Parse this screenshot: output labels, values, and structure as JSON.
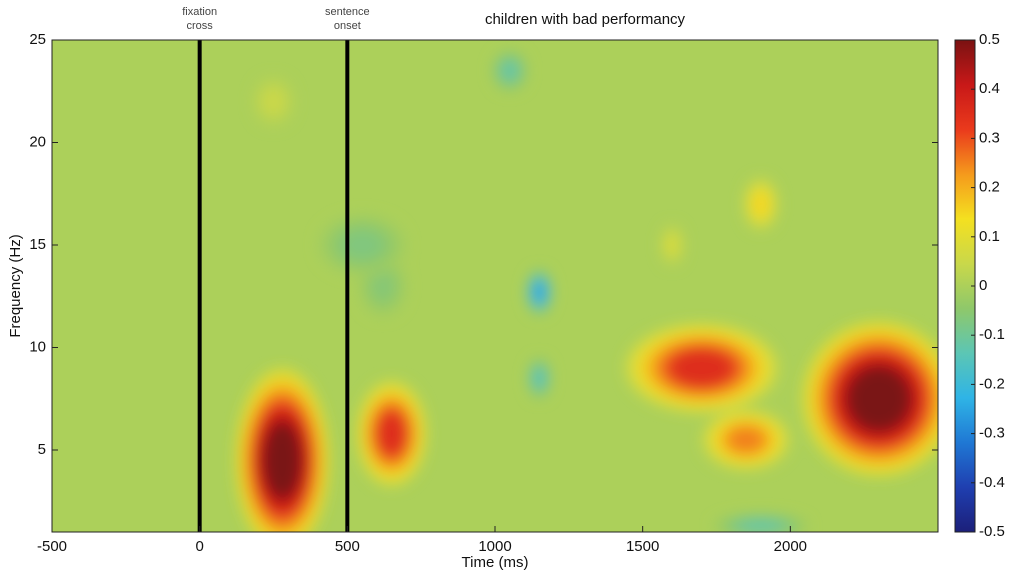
{
  "chart_data": {
    "type": "heatmap",
    "title": "children with bad performancy",
    "xlabel": "Time (ms)",
    "ylabel": "Frequency (Hz)",
    "xlim": [
      -500,
      2500
    ],
    "xticks": [
      -500,
      0,
      500,
      1000,
      1500,
      2000
    ],
    "ylim": [
      1,
      25
    ],
    "yticks": [
      5,
      10,
      15,
      20,
      25
    ],
    "clim": [
      -0.5,
      0.5
    ],
    "cticks": [
      -0.5,
      -0.4,
      -0.3,
      -0.2,
      -0.1,
      0,
      0.1,
      0.2,
      0.3,
      0.4,
      0.5
    ],
    "colormap": [
      "#1c1f7a",
      "#1f3fb0",
      "#1f78d4",
      "#2fb4e6",
      "#5cc6b4",
      "#8fc86a",
      "#c9d84a",
      "#f4e020",
      "#f59a1c",
      "#ea3a1c",
      "#c81818",
      "#7a1212"
    ],
    "markers": [
      {
        "x": 0,
        "label": [
          "fixation",
          "cross"
        ]
      },
      {
        "x": 500,
        "label": [
          "sentence",
          "onset"
        ]
      }
    ],
    "blobs": [
      {
        "t": 280,
        "f": 4.5,
        "rt": 160,
        "rf": 4.5,
        "v": 0.5
      },
      {
        "t": 650,
        "f": 5.8,
        "rt": 120,
        "rf": 2.6,
        "v": 0.35
      },
      {
        "t": 1700,
        "f": 9,
        "rt": 260,
        "rf": 2.2,
        "v": 0.35
      },
      {
        "t": 2300,
        "f": 7.5,
        "rt": 260,
        "rf": 3.8,
        "v": 0.5
      },
      {
        "t": 1850,
        "f": 5.5,
        "rt": 150,
        "rf": 1.5,
        "v": 0.25
      },
      {
        "t": 1150,
        "f": 12.7,
        "rt": 45,
        "rf": 1.1,
        "v": -0.25
      },
      {
        "t": 1150,
        "f": 8.5,
        "rt": 40,
        "rf": 1,
        "v": -0.15
      },
      {
        "t": 1050,
        "f": 23.5,
        "rt": 60,
        "rf": 1,
        "v": -0.12
      },
      {
        "t": 1900,
        "f": 1.3,
        "rt": 160,
        "rf": 0.6,
        "v": -0.12
      },
      {
        "t": 1900,
        "f": 17,
        "rt": 60,
        "rf": 1.3,
        "v": 0.15
      },
      {
        "t": 1600,
        "f": 15,
        "rt": 40,
        "rf": 1,
        "v": 0.08
      },
      {
        "t": 250,
        "f": 22,
        "rt": 70,
        "rf": 1.2,
        "v": 0.05
      },
      {
        "t": 550,
        "f": 15,
        "rt": 150,
        "rf": 1.5,
        "v": -0.07
      },
      {
        "t": 620,
        "f": 13,
        "rt": 80,
        "rf": 1.5,
        "v": -0.06
      }
    ]
  }
}
